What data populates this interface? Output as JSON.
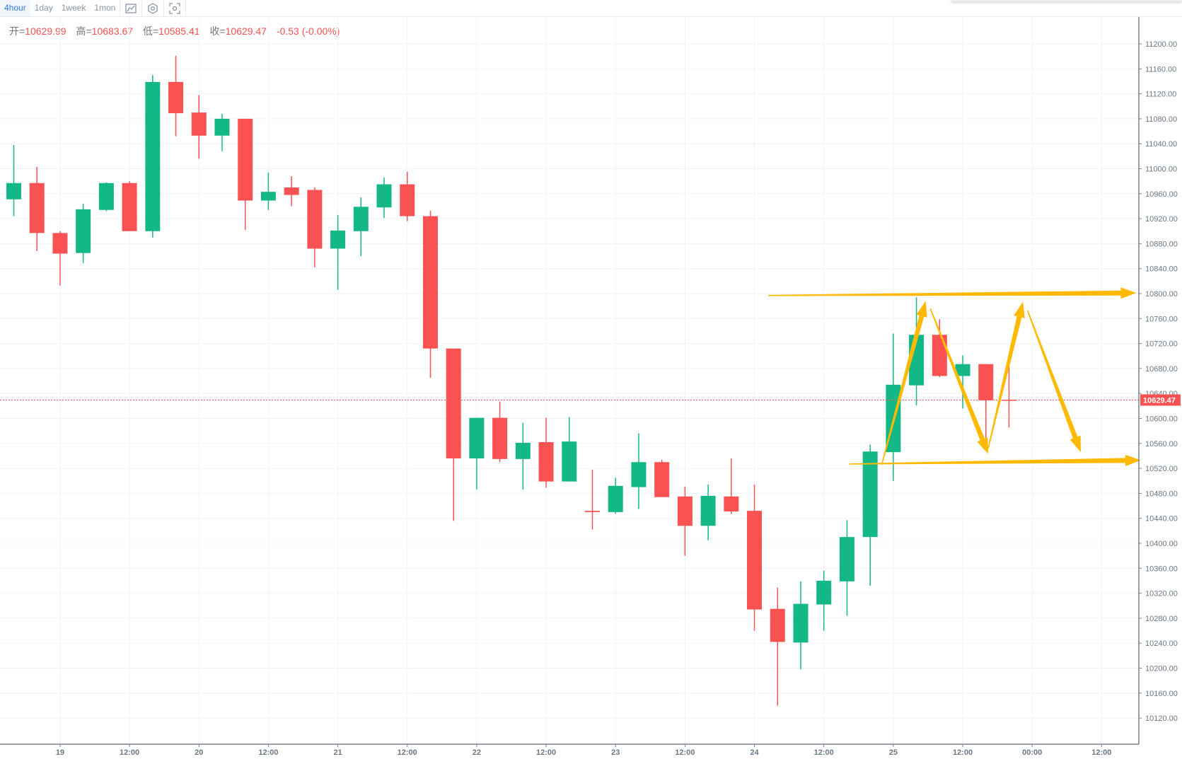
{
  "toolbar": {
    "tabs": [
      {
        "label": "4hour",
        "active": true
      },
      {
        "label": "1day",
        "active": false
      },
      {
        "label": "1week",
        "active": false
      },
      {
        "label": "1mon",
        "active": false
      }
    ],
    "icons": [
      "chart-type-icon",
      "settings-icon",
      "screenshot-icon"
    ]
  },
  "legend": {
    "open_label": "开=",
    "open": "10629.99",
    "high_label": "高=",
    "high": "10683.67",
    "low_label": "低=",
    "low": "10585.41",
    "close_label": "收=",
    "close": "10629.47",
    "change": "-0.53 (-0.00%)"
  },
  "colors": {
    "up": "#13b886",
    "down": "#fa5252",
    "annotation": "#ffb900",
    "last_price": "#fa5252"
  },
  "chart_data": {
    "type": "candlestick",
    "interval": "4hour",
    "ylim": [
      10080,
      11240
    ],
    "yticks": [
      11200,
      11160,
      11120,
      11080,
      11040,
      11000,
      10960,
      10920,
      10880,
      10840,
      10800,
      10760,
      10720,
      10680,
      10640,
      10600,
      10560,
      10520,
      10480,
      10440,
      10400,
      10360,
      10320,
      10280,
      10240,
      10200,
      10160,
      10120
    ],
    "ytick_labels": [
      "11200.00",
      "11160.00",
      "11120.00",
      "11080.00",
      "11040.00",
      "11000.00",
      "10960.00",
      "10920.00",
      "10880.00",
      "10840.00",
      "10800.00",
      "10760.00",
      "10720.00",
      "10680.00",
      "10640.00",
      "10600.00",
      "10560.00",
      "10520.00",
      "10480.00",
      "10440.00",
      "10400.00",
      "10360.00",
      "10320.00",
      "10280.00",
      "10240.00",
      "10200.00",
      "10160.00",
      "10120.00"
    ],
    "xticks": [
      {
        "label": "19",
        "bar": 2
      },
      {
        "label": "12:00",
        "bar": 5
      },
      {
        "label": "20",
        "bar": 8
      },
      {
        "label": "12:00",
        "bar": 11
      },
      {
        "label": "21",
        "bar": 14
      },
      {
        "label": "12:00",
        "bar": 17
      },
      {
        "label": "22",
        "bar": 20
      },
      {
        "label": "12:00",
        "bar": 23
      },
      {
        "label": "23",
        "bar": 26
      },
      {
        "label": "12:00",
        "bar": 29
      },
      {
        "label": "24",
        "bar": 32
      },
      {
        "label": "12:00",
        "bar": 35
      },
      {
        "label": "25",
        "bar": 38
      },
      {
        "label": "12:00",
        "bar": 41
      },
      {
        "label": "00:00",
        "bar": 44
      },
      {
        "label": "12:00",
        "bar": 47
      }
    ],
    "candles_ohlc": [
      [
        10951,
        11038,
        10924,
        10977
      ],
      [
        10977,
        11003,
        10868,
        10897
      ],
      [
        10897,
        10900,
        10813,
        10864
      ],
      [
        10865,
        10944,
        10849,
        10935
      ],
      [
        10934,
        10978,
        10932,
        10977
      ],
      [
        10977,
        10980,
        10900,
        10900
      ],
      [
        10900,
        11150,
        10890,
        11139
      ],
      [
        11139,
        11181,
        11052,
        11089
      ],
      [
        11090,
        11118,
        11016,
        11053
      ],
      [
        11053,
        11088,
        11028,
        11080
      ],
      [
        11080,
        11080,
        10902,
        10949
      ],
      [
        10949,
        10994,
        10934,
        10963
      ],
      [
        10970,
        10988,
        10940,
        10958
      ],
      [
        10966,
        10970,
        10842,
        10872
      ],
      [
        10872,
        10926,
        10806,
        10901
      ],
      [
        10900,
        10954,
        10860,
        10939
      ],
      [
        10938,
        10986,
        10921,
        10975
      ],
      [
        10975,
        10995,
        10916,
        10924
      ],
      [
        10924,
        10933,
        10665,
        10712
      ],
      [
        10712,
        10712,
        10436,
        10536
      ],
      [
        10536,
        10601,
        10486,
        10601
      ],
      [
        10601,
        10627,
        10530,
        10535
      ],
      [
        10535,
        10593,
        10486,
        10561
      ],
      [
        10562,
        10601,
        10489,
        10499
      ],
      [
        10499,
        10602,
        10499,
        10563
      ],
      [
        10452,
        10518,
        10422,
        10450
      ],
      [
        10450,
        10505,
        10447,
        10492
      ],
      [
        10490,
        10576,
        10455,
        10530
      ],
      [
        10530,
        10534,
        10474,
        10474
      ],
      [
        10475,
        10491,
        10380,
        10428
      ],
      [
        10428,
        10494,
        10405,
        10476
      ],
      [
        10475,
        10536,
        10447,
        10451
      ],
      [
        10452,
        10494,
        10260,
        10294
      ],
      [
        10295,
        10329,
        10140,
        10242
      ],
      [
        10241,
        10339,
        10198,
        10303
      ],
      [
        10302,
        10356,
        10260,
        10340
      ],
      [
        10339,
        10437,
        10284,
        10410
      ],
      [
        10410,
        10558,
        10332,
        10547
      ],
      [
        10546,
        10736,
        10500,
        10654
      ],
      [
        10653,
        10794,
        10621,
        10734
      ],
      [
        10734,
        10759,
        10666,
        10668
      ],
      [
        10668,
        10701,
        10616,
        10687
      ],
      [
        10687,
        10687,
        10553,
        10629
      ],
      [
        10629.99,
        10683.67,
        10585.41,
        10629.47
      ]
    ],
    "last_price": 10629.47,
    "last_price_label": "10629.47",
    "annotations": [
      {
        "kind": "arrow",
        "from": [
          32.6,
          10797
        ],
        "to": [
          48.5,
          10801
        ]
      },
      {
        "kind": "arrow",
        "from": [
          36.1,
          10527
        ],
        "to": [
          48.7,
          10533
        ]
      },
      {
        "kind": "arrow",
        "from": [
          37.5,
          10526
        ],
        "to": [
          39.4,
          10788
        ]
      },
      {
        "kind": "arrow",
        "from": [
          39.6,
          10776
        ],
        "to": [
          42.1,
          10543
        ]
      },
      {
        "kind": "arrow",
        "from": [
          42.1,
          10552
        ],
        "to": [
          43.6,
          10787
        ]
      },
      {
        "kind": "arrow",
        "from": [
          43.8,
          10773
        ],
        "to": [
          46.1,
          10546
        ]
      }
    ]
  }
}
